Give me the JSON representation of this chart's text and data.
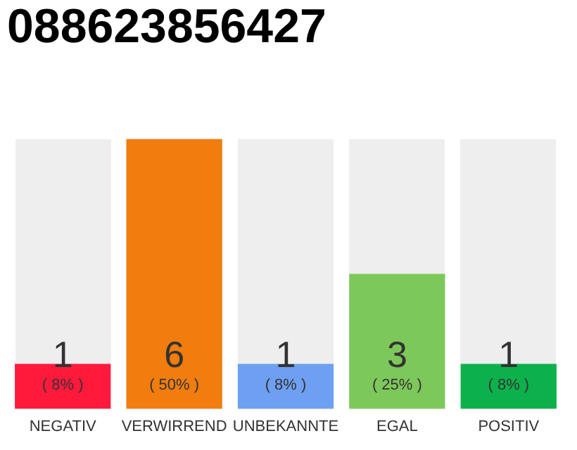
{
  "chart_data": {
    "type": "bar",
    "title": "088623856427",
    "categories": [
      "NEGATIV",
      "VERWIRREND",
      "UNBEKANNTE",
      "EGAL",
      "POSITIV"
    ],
    "values": [
      1,
      6,
      1,
      3,
      1
    ],
    "colors": [
      "#ff1a3c",
      "#f07d0e",
      "#6da0f0",
      "#7dc85a",
      "#0db14b"
    ],
    "data_labels": true,
    "annotations": [
      "( 8% )",
      "( 50% )",
      "( 8% )",
      "( 25% )",
      "( 8% )"
    ],
    "grid": false,
    "legend": false
  }
}
